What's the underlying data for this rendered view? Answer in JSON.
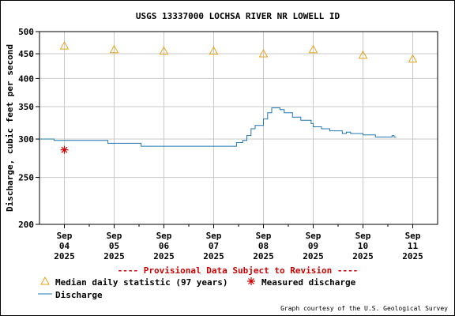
{
  "chart_data": {
    "type": "line",
    "title": "USGS 13337000 LOCHSA RIVER NR LOWELL ID",
    "ylabel": "Discharge, cubic feet per second",
    "y_scale": "log",
    "ylim": [
      200,
      500
    ],
    "y_ticks": [
      200,
      250,
      300,
      350,
      400,
      450,
      500
    ],
    "xlim": [
      "2025-09-03T12:00",
      "2025-09-11T12:00"
    ],
    "x_ticks": [
      {
        "date": "2025-09-04",
        "label": [
          "Sep",
          "04",
          "2025"
        ]
      },
      {
        "date": "2025-09-05",
        "label": [
          "Sep",
          "05",
          "2025"
        ]
      },
      {
        "date": "2025-09-06",
        "label": [
          "Sep",
          "06",
          "2025"
        ]
      },
      {
        "date": "2025-09-07",
        "label": [
          "Sep",
          "07",
          "2025"
        ]
      },
      {
        "date": "2025-09-08",
        "label": [
          "Sep",
          "08",
          "2025"
        ]
      },
      {
        "date": "2025-09-09",
        "label": [
          "Sep",
          "09",
          "2025"
        ]
      },
      {
        "date": "2025-09-10",
        "label": [
          "Sep",
          "10",
          "2025"
        ]
      },
      {
        "date": "2025-09-11",
        "label": [
          "Sep",
          "11",
          "2025"
        ]
      }
    ],
    "grid": true,
    "annotation": "---- Provisional Data Subject to Revision ----",
    "credit": "Graph courtesy of the U.S. Geological Survey",
    "series": [
      {
        "name": "Median daily statistic (97 years)",
        "style": "triangle",
        "color": "#e8a317",
        "points": [
          {
            "x": "2025-09-04",
            "y": 467
          },
          {
            "x": "2025-09-05",
            "y": 459
          },
          {
            "x": "2025-09-06",
            "y": 456
          },
          {
            "x": "2025-09-07",
            "y": 456
          },
          {
            "x": "2025-09-08",
            "y": 450
          },
          {
            "x": "2025-09-09",
            "y": 459
          },
          {
            "x": "2025-09-10",
            "y": 447
          },
          {
            "x": "2025-09-11",
            "y": 439
          }
        ]
      },
      {
        "name": "Measured discharge",
        "style": "asterisk",
        "color": "#cc0000",
        "points": [
          {
            "x": "2025-09-04",
            "y": 285
          }
        ]
      },
      {
        "name": "Discharge",
        "style": "line",
        "color": "#1f77b4",
        "points": [
          {
            "x": "2025-09-03T12:00",
            "y": 300
          },
          {
            "x": "2025-09-03T18:00",
            "y": 300
          },
          {
            "x": "2025-09-03T19:00",
            "y": 298
          },
          {
            "x": "2025-09-04T20:00",
            "y": 298
          },
          {
            "x": "2025-09-04T21:00",
            "y": 294
          },
          {
            "x": "2025-09-05T12:00",
            "y": 294
          },
          {
            "x": "2025-09-05T13:00",
            "y": 290
          },
          {
            "x": "2025-09-07T10:00",
            "y": 290
          },
          {
            "x": "2025-09-07T11:00",
            "y": 295
          },
          {
            "x": "2025-09-07T14:00",
            "y": 298
          },
          {
            "x": "2025-09-07T16:00",
            "y": 305
          },
          {
            "x": "2025-09-07T18:00",
            "y": 315
          },
          {
            "x": "2025-09-07T20:00",
            "y": 320
          },
          {
            "x": "2025-09-08T00:00",
            "y": 330
          },
          {
            "x": "2025-09-08T02:00",
            "y": 340
          },
          {
            "x": "2025-09-08T04:00",
            "y": 348
          },
          {
            "x": "2025-09-08T06:00",
            "y": 348
          },
          {
            "x": "2025-09-08T08:00",
            "y": 345
          },
          {
            "x": "2025-09-08T10:00",
            "y": 340
          },
          {
            "x": "2025-09-08T14:00",
            "y": 333
          },
          {
            "x": "2025-09-08T18:00",
            "y": 328
          },
          {
            "x": "2025-09-08T23:00",
            "y": 323
          },
          {
            "x": "2025-09-09T00:00",
            "y": 318
          },
          {
            "x": "2025-09-09T04:00",
            "y": 315
          },
          {
            "x": "2025-09-09T08:00",
            "y": 312
          },
          {
            "x": "2025-09-09T14:00",
            "y": 308
          },
          {
            "x": "2025-09-09T16:00",
            "y": 310
          },
          {
            "x": "2025-09-09T18:00",
            "y": 308
          },
          {
            "x": "2025-09-10T00:00",
            "y": 306
          },
          {
            "x": "2025-09-10T06:00",
            "y": 303
          },
          {
            "x": "2025-09-10T12:00",
            "y": 303
          },
          {
            "x": "2025-09-10T14:00",
            "y": 305
          },
          {
            "x": "2025-09-10T15:00",
            "y": 303
          },
          {
            "x": "2025-09-10T16:00",
            "y": 303
          }
        ]
      }
    ]
  }
}
